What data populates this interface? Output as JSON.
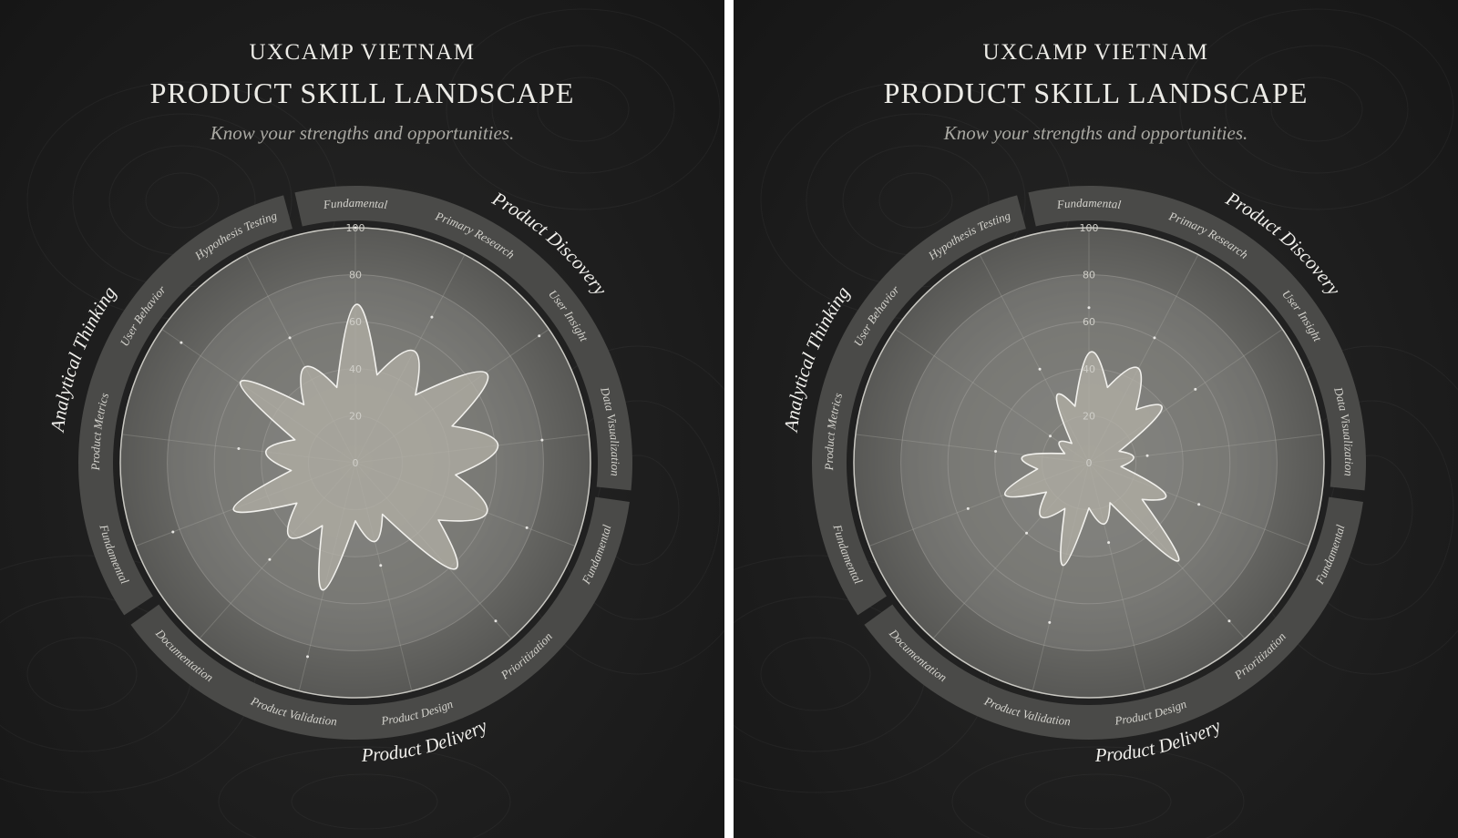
{
  "panels": [
    {
      "org": "UXCAMP VIETNAM",
      "title": "PRODUCT SKILL LANDSCAPE",
      "subtitle": "Know your strengths and opportunities."
    },
    {
      "org": "UXCAMP VIETNAM",
      "title": "PRODUCT SKILL LANDSCAPE",
      "subtitle": "Know your strengths and opportunities."
    }
  ],
  "colors": {
    "band": "#4a4a48",
    "fill": "#b4b2a8",
    "stroke": "#f2f1ed"
  },
  "chart_data": [
    {
      "type": "radar",
      "title": "PRODUCT SKILL LANDSCAPE",
      "rlim": [
        0,
        100
      ],
      "ticks": [
        0,
        20,
        40,
        60,
        80,
        100
      ],
      "groups": [
        {
          "name": "Product Discovery",
          "axes": [
            "Fundamental",
            "Primary Research",
            "User Insight",
            "Data Visualization"
          ]
        },
        {
          "name": "Product Delivery",
          "axes": [
            "Fundamental",
            "Prioritization",
            "Product Design",
            "Product Validation",
            "Documentation"
          ]
        },
        {
          "name": "Analytical Thinking",
          "axes": [
            "Fundamental",
            "Product Metrics",
            "User Behavior",
            "Hypothesis Testing"
          ]
        }
      ],
      "categories": [
        "Fundamental",
        "Primary Research",
        "User Insight",
        "Data Visualization",
        "Fundamental",
        "Prioritization",
        "Product Design",
        "Product Validation",
        "Documentation",
        "Fundamental",
        "Product Metrics",
        "User Behavior",
        "Hypothesis Testing"
      ],
      "values": [
        100,
        70,
        95,
        80,
        78,
        90,
        45,
        85,
        55,
        83,
        50,
        90,
        60
      ]
    },
    {
      "type": "radar",
      "title": "PRODUCT SKILL LANDSCAPE",
      "rlim": [
        0,
        100
      ],
      "ticks": [
        0,
        20,
        40,
        60,
        80,
        100
      ],
      "groups": [
        {
          "name": "Product Discovery",
          "axes": [
            "Fundamental",
            "Primary Research",
            "User Insight",
            "Data Visualization"
          ]
        },
        {
          "name": "Product Delivery",
          "axes": [
            "Fundamental",
            "Prioritization",
            "Product Design",
            "Product Validation",
            "Documentation"
          ]
        },
        {
          "name": "Analytical Thinking",
          "axes": [
            "Fundamental",
            "Product Metrics",
            "User Behavior",
            "Hypothesis Testing"
          ]
        }
      ],
      "categories": [
        "Fundamental",
        "Primary Research",
        "User Insight",
        "Data Visualization",
        "Fundamental",
        "Prioritization",
        "Product Design",
        "Product Validation",
        "Documentation",
        "Fundamental",
        "Product Metrics",
        "User Behavior",
        "Hypothesis Testing"
      ],
      "values": [
        66,
        60,
        55,
        25,
        50,
        90,
        35,
        70,
        40,
        55,
        40,
        20,
        45
      ]
    }
  ]
}
